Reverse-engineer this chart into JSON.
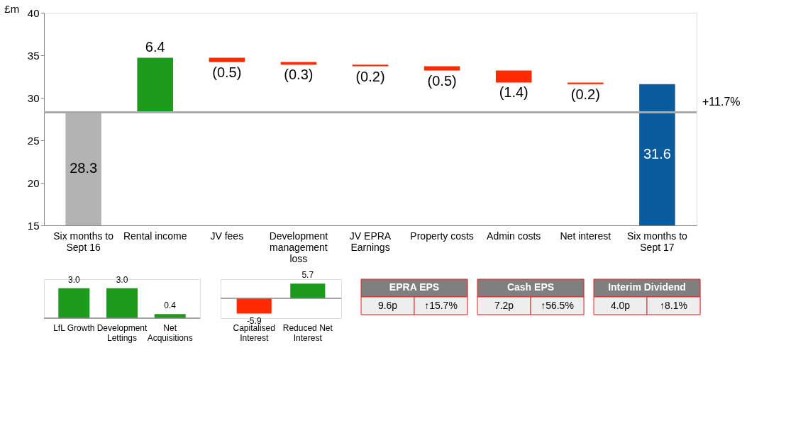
{
  "chart_data": [
    {
      "type": "bar",
      "ylabel": "£m",
      "categories": [
        "Six months to Sept 16",
        "Rental income",
        "JV fees",
        "Development management loss",
        "JV EPRA Earnings",
        "Property costs",
        "Admin costs",
        "Net interest",
        "Six months to Sept 17"
      ],
      "values": [
        28.3,
        6.4,
        -0.5,
        -0.3,
        -0.2,
        -0.5,
        -1.4,
        -0.2,
        31.6
      ],
      "base": [
        null,
        28.3,
        34.7,
        34.2,
        33.9,
        33.7,
        33.2,
        31.8,
        null
      ],
      "colors": [
        "#b3b3b3",
        "#1b9a1b",
        "#ff2a00",
        "#ff2a00",
        "#ff2a00",
        "#ff2a00",
        "#ff2a00",
        "#ff2a00",
        "#0b5c9c"
      ],
      "value_labels": [
        "28.3",
        "6.4",
        "(0.5)",
        "(0.3)",
        "(0.2)",
        "(0.5)",
        "(1.4)",
        "(0.2)",
        "31.6"
      ],
      "ylim": [
        15,
        40
      ],
      "yticks": [
        15,
        20,
        25,
        30,
        35,
        40
      ],
      "grid": false,
      "ref_lines": [
        {
          "axis": "y",
          "value": 28.3,
          "color": "#aaaaaa"
        }
      ],
      "annotations": [
        "+11.7%"
      ]
    },
    {
      "type": "bar",
      "categories": [
        "LfL Growth",
        "Development Lettings",
        "Net Acquisitions"
      ],
      "values": [
        3.0,
        3.0,
        0.4
      ],
      "colors": [
        "#1b9a1b",
        "#1b9a1b",
        "#1b9a1b"
      ],
      "value_labels": [
        "3.0",
        "3.0",
        "0.4"
      ],
      "tick_labels": "x"
    },
    {
      "type": "bar",
      "categories": [
        "Capitalised Interest",
        "Reduced Net Interest"
      ],
      "values": [
        -5.9,
        5.7
      ],
      "colors": [
        "#ff2a00",
        "#1b9a1b"
      ],
      "value_labels": [
        "-5.9",
        "5.7"
      ],
      "tick_labels": "x"
    },
    {
      "type": "other",
      "title": "EPRA EPS",
      "annotations": [
        "9.6p",
        "↑15.7%"
      ]
    },
    {
      "type": "other",
      "title": "Cash EPS",
      "annotations": [
        "7.2p",
        "↑56.5%"
      ]
    },
    {
      "type": "other",
      "title": "Interim Dividend",
      "annotations": [
        "4.0p",
        "↑8.1%"
      ]
    }
  ]
}
